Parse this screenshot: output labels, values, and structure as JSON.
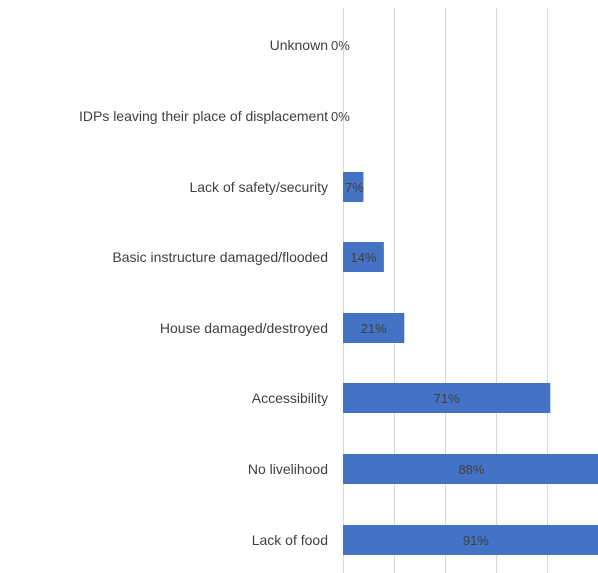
{
  "chart_data": {
    "type": "bar",
    "orientation": "horizontal",
    "categories": [
      "Unknown",
      "IDPs leaving their place of displacement",
      "Lack of safety/security",
      "Basic instructure damaged/flooded",
      "House damaged/destroyed",
      "Accessibility",
      "No livelihood",
      "Lack of food"
    ],
    "values": [
      0,
      0,
      7,
      14,
      21,
      71,
      88,
      91
    ],
    "data_labels": [
      "0%",
      "0%",
      "7%",
      "14%",
      "21%",
      "71%",
      "88%",
      "91%"
    ],
    "unit": "%",
    "title": "",
    "xlabel": "",
    "ylabel": "",
    "xlim": [
      0,
      90
    ],
    "grid": "vertical",
    "legend": "none",
    "colors": {
      "bar": "#4472C4",
      "gridline": "#D9D9D9",
      "label_inside": "#404040",
      "label_outside": "#404040",
      "category_text": "#404040"
    }
  }
}
